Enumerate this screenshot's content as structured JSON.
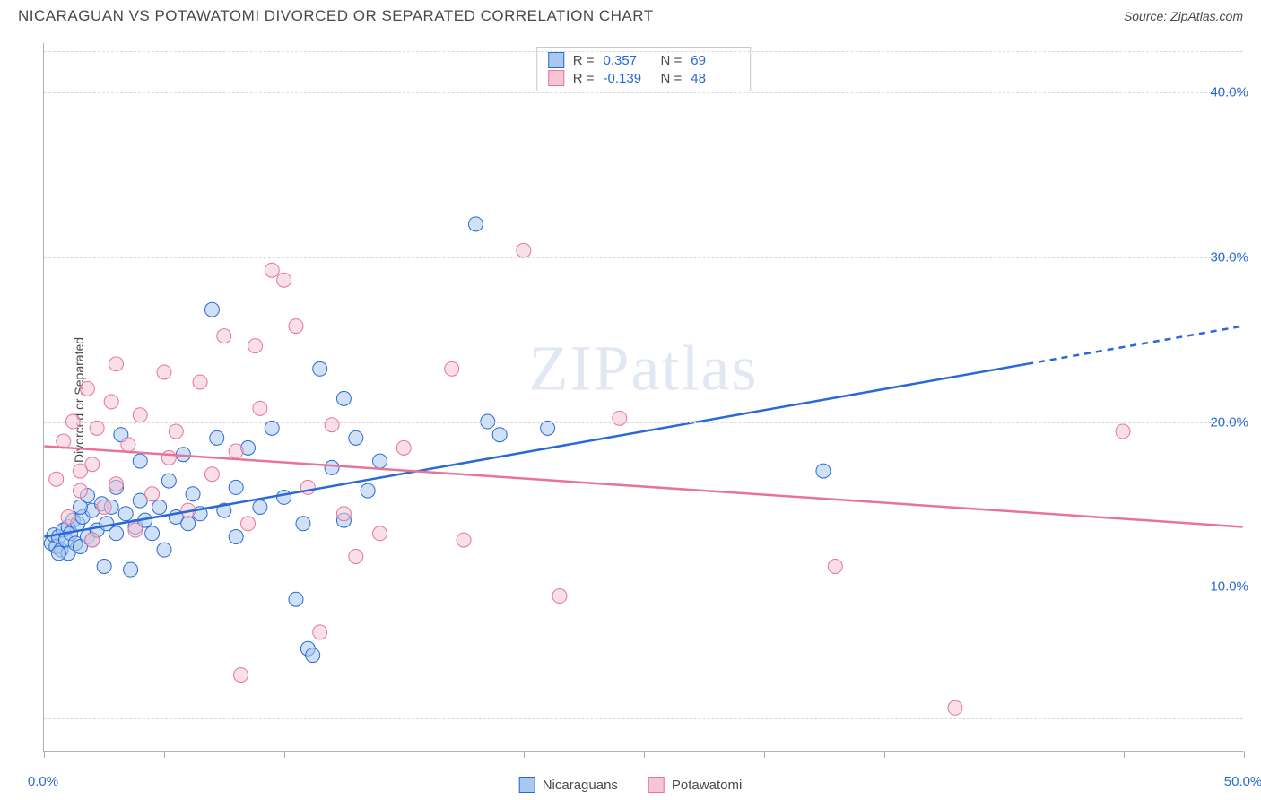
{
  "header": {
    "title": "NICARAGUAN VS POTAWATOMI DIVORCED OR SEPARATED CORRELATION CHART",
    "source": "Source: ZipAtlas.com"
  },
  "chart": {
    "type": "scatter",
    "ylabel": "Divorced or Separated",
    "xlim": [
      0,
      50
    ],
    "ylim": [
      0,
      43
    ],
    "xtick_positions": [
      0,
      5,
      10,
      15,
      20,
      25,
      30,
      35,
      40,
      45,
      50
    ],
    "xtick_labels": {
      "0": "0.0%",
      "50": "50.0%"
    },
    "ytick_positions": [
      10,
      20,
      30,
      40
    ],
    "ytick_labels": {
      "10": "10.0%",
      "20": "20.0%",
      "30": "30.0%",
      "40": "40.0%"
    },
    "grid_positions": [
      2,
      10,
      20,
      30,
      40,
      42.5
    ],
    "background_color": "#ffffff",
    "grid_color": "#d8d8d8",
    "axis_color": "#b0b0b0",
    "tick_label_color": "#2968d8",
    "axis_label_color": "#4a4a4a",
    "label_fontsize": 14,
    "tick_fontsize": 15,
    "marker_radius": 8,
    "marker_opacity": 0.55,
    "watermark": "ZIPatlas",
    "watermark_color": "rgba(120,150,200,0.22)",
    "series": [
      {
        "name": "Nicaraguans",
        "fill": "#a9c8ef",
        "stroke": "#2968d8",
        "trend": {
          "x1": 0,
          "y1": 13.0,
          "x2": 41,
          "y2": 23.5,
          "x2_dash": 50,
          "y2_dash": 25.8
        },
        "stats": {
          "R": "0.357",
          "N": "69"
        },
        "points": [
          [
            0.3,
            12.6
          ],
          [
            0.4,
            13.1
          ],
          [
            0.5,
            12.4
          ],
          [
            0.6,
            13.0
          ],
          [
            0.7,
            12.2
          ],
          [
            0.8,
            13.4
          ],
          [
            0.9,
            12.8
          ],
          [
            1.0,
            13.6
          ],
          [
            1.0,
            12.0
          ],
          [
            1.1,
            13.2
          ],
          [
            1.2,
            14.0
          ],
          [
            1.3,
            12.6
          ],
          [
            1.4,
            13.8
          ],
          [
            1.5,
            12.4
          ],
          [
            1.6,
            14.2
          ],
          [
            1.8,
            13.0
          ],
          [
            1.8,
            15.5
          ],
          [
            2.0,
            12.8
          ],
          [
            2.0,
            14.6
          ],
          [
            2.2,
            13.4
          ],
          [
            2.4,
            15.0
          ],
          [
            2.5,
            11.2
          ],
          [
            2.6,
            13.8
          ],
          [
            2.8,
            14.8
          ],
          [
            3.0,
            13.2
          ],
          [
            3.0,
            16.0
          ],
          [
            3.2,
            19.2
          ],
          [
            3.4,
            14.4
          ],
          [
            3.6,
            11.0
          ],
          [
            3.8,
            13.6
          ],
          [
            4.0,
            15.2
          ],
          [
            4.0,
            17.6
          ],
          [
            4.2,
            14.0
          ],
          [
            4.5,
            13.2
          ],
          [
            4.8,
            14.8
          ],
          [
            5.0,
            12.2
          ],
          [
            5.2,
            16.4
          ],
          [
            5.5,
            14.2
          ],
          [
            5.8,
            18.0
          ],
          [
            6.0,
            13.8
          ],
          [
            6.2,
            15.6
          ],
          [
            6.5,
            14.4
          ],
          [
            7.0,
            26.8
          ],
          [
            7.2,
            19.0
          ],
          [
            7.5,
            14.6
          ],
          [
            8.0,
            16.0
          ],
          [
            8.0,
            13.0
          ],
          [
            8.5,
            18.4
          ],
          [
            9.0,
            14.8
          ],
          [
            9.5,
            19.6
          ],
          [
            10.0,
            15.4
          ],
          [
            10.5,
            9.2
          ],
          [
            10.8,
            13.8
          ],
          [
            11.0,
            6.2
          ],
          [
            11.2,
            5.8
          ],
          [
            11.5,
            23.2
          ],
          [
            12.0,
            17.2
          ],
          [
            12.5,
            14.0
          ],
          [
            12.5,
            21.4
          ],
          [
            13.0,
            19.0
          ],
          [
            13.5,
            15.8
          ],
          [
            14.0,
            17.6
          ],
          [
            18.0,
            32.0
          ],
          [
            18.5,
            20.0
          ],
          [
            19.0,
            19.2
          ],
          [
            21.0,
            19.6
          ],
          [
            32.5,
            17.0
          ],
          [
            0.6,
            12.0
          ],
          [
            1.5,
            14.8
          ]
        ]
      },
      {
        "name": "Potawatomi",
        "fill": "#f4c5d2",
        "stroke": "#e7739c",
        "trend": {
          "x1": 0,
          "y1": 18.5,
          "x2": 50,
          "y2": 13.6
        },
        "stats": {
          "R": "-0.139",
          "N": "48"
        },
        "points": [
          [
            0.5,
            16.5
          ],
          [
            0.8,
            18.8
          ],
          [
            1.0,
            14.2
          ],
          [
            1.2,
            20.0
          ],
          [
            1.5,
            15.8
          ],
          [
            1.8,
            22.0
          ],
          [
            2.0,
            17.4
          ],
          [
            2.2,
            19.6
          ],
          [
            2.5,
            14.8
          ],
          [
            2.8,
            21.2
          ],
          [
            3.0,
            16.2
          ],
          [
            3.0,
            23.5
          ],
          [
            3.5,
            18.6
          ],
          [
            3.8,
            13.4
          ],
          [
            4.0,
            20.4
          ],
          [
            4.5,
            15.6
          ],
          [
            5.0,
            23.0
          ],
          [
            5.2,
            17.8
          ],
          [
            5.5,
            19.4
          ],
          [
            6.0,
            14.6
          ],
          [
            6.5,
            22.4
          ],
          [
            7.0,
            16.8
          ],
          [
            7.5,
            25.2
          ],
          [
            8.0,
            18.2
          ],
          [
            8.5,
            13.8
          ],
          [
            8.8,
            24.6
          ],
          [
            9.0,
            20.8
          ],
          [
            9.5,
            29.2
          ],
          [
            10.0,
            28.6
          ],
          [
            10.5,
            25.8
          ],
          [
            11.0,
            16.0
          ],
          [
            11.5,
            7.2
          ],
          [
            12.0,
            19.8
          ],
          [
            12.5,
            14.4
          ],
          [
            13.0,
            11.8
          ],
          [
            8.2,
            4.6
          ],
          [
            14.0,
            13.2
          ],
          [
            15.0,
            18.4
          ],
          [
            17.0,
            23.2
          ],
          [
            17.5,
            12.8
          ],
          [
            20.0,
            30.4
          ],
          [
            21.5,
            9.4
          ],
          [
            24.0,
            20.2
          ],
          [
            33.0,
            11.2
          ],
          [
            38.0,
            2.6
          ],
          [
            45.0,
            19.4
          ],
          [
            2.0,
            12.8
          ],
          [
            1.5,
            17.0
          ]
        ]
      }
    ]
  },
  "stats_legend": {
    "rows": [
      {
        "swatch_fill": "#a9c8ef",
        "swatch_stroke": "#2968d8",
        "R": "0.357",
        "N": "69"
      },
      {
        "swatch_fill": "#f4c5d2",
        "swatch_stroke": "#e7739c",
        "R": "-0.139",
        "N": "48"
      }
    ]
  },
  "series_legend": {
    "items": [
      {
        "swatch_fill": "#a9c8ef",
        "swatch_stroke": "#2968d8",
        "label": "Nicaraguans"
      },
      {
        "swatch_fill": "#f4c5d2",
        "swatch_stroke": "#e7739c",
        "label": "Potawatomi"
      }
    ]
  }
}
